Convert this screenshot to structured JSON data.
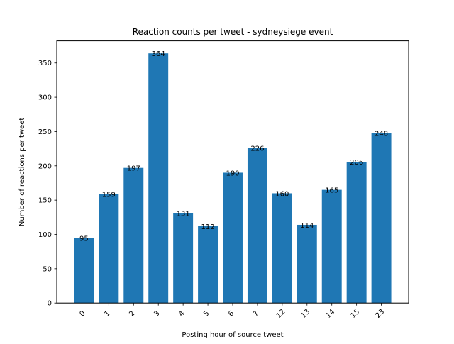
{
  "chart_data": {
    "type": "bar",
    "title": "Reaction counts per tweet - sydneysiege event",
    "xlabel": "Posting hour of source tweet",
    "ylabel": "Number of reactions per tweet",
    "categories": [
      "0",
      "1",
      "2",
      "3",
      "4",
      "5",
      "6",
      "7",
      "12",
      "13",
      "14",
      "15",
      "23"
    ],
    "values": [
      95,
      159,
      197,
      364,
      131,
      112,
      190,
      226,
      160,
      114,
      165,
      206,
      248
    ],
    "ylim": [
      0,
      382.2
    ],
    "yticks": [
      0,
      50,
      100,
      150,
      200,
      250,
      300,
      350
    ],
    "x_tick_rotation": 45,
    "grid": false,
    "bar_color": "#1f77b4"
  }
}
